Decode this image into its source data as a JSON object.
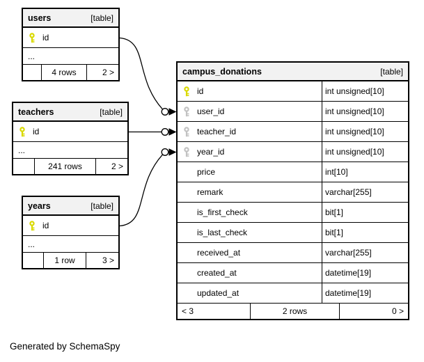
{
  "page": {
    "generated_note": "Generated by SchemaSpy"
  },
  "colors": {
    "primary_key": "#d9d900",
    "foreign_key": "#c2c2c2",
    "header_bg": "#f2f2f2",
    "border": "#000000"
  },
  "tables": [
    {
      "name": "users",
      "badge": "[table]",
      "columns": [
        {
          "name": "id",
          "key": "pk"
        }
      ],
      "ellipsis": "...",
      "footer": {
        "left": "",
        "center": "4 rows",
        "right": "2 >"
      }
    },
    {
      "name": "teachers",
      "badge": "[table]",
      "columns": [
        {
          "name": "id",
          "key": "pk"
        }
      ],
      "ellipsis": "...",
      "footer": {
        "left": "",
        "center": "241 rows",
        "right": "2 >"
      }
    },
    {
      "name": "years",
      "badge": "[table]",
      "columns": [
        {
          "name": "id",
          "key": "pk"
        }
      ],
      "ellipsis": "...",
      "footer": {
        "left": "",
        "center": "1 row",
        "right": "3 >"
      }
    },
    {
      "name": "campus_donations",
      "badge": "[table]",
      "columns": [
        {
          "name": "id",
          "type": "int unsigned[10]",
          "key": "pk"
        },
        {
          "name": "user_id",
          "type": "int unsigned[10]",
          "key": "fk"
        },
        {
          "name": "teacher_id",
          "type": "int unsigned[10]",
          "key": "fk"
        },
        {
          "name": "year_id",
          "type": "int unsigned[10]",
          "key": "fk"
        },
        {
          "name": "price",
          "type": "int[10]",
          "key": null
        },
        {
          "name": "remark",
          "type": "varchar[255]",
          "key": null
        },
        {
          "name": "is_first_check",
          "type": "bit[1]",
          "key": null
        },
        {
          "name": "is_last_check",
          "type": "bit[1]",
          "key": null
        },
        {
          "name": "received_at",
          "type": "varchar[255]",
          "key": null
        },
        {
          "name": "created_at",
          "type": "datetime[19]",
          "key": null
        },
        {
          "name": "updated_at",
          "type": "datetime[19]",
          "key": null
        }
      ],
      "ellipsis": null,
      "footer": {
        "left": "< 3",
        "center": "2 rows",
        "right": "0 >"
      }
    }
  ],
  "relationships": [
    {
      "from": "users.id",
      "to": "campus_donations.user_id"
    },
    {
      "from": "teachers.id",
      "to": "campus_donations.teacher_id"
    },
    {
      "from": "years.id",
      "to": "campus_donations.year_id"
    }
  ]
}
